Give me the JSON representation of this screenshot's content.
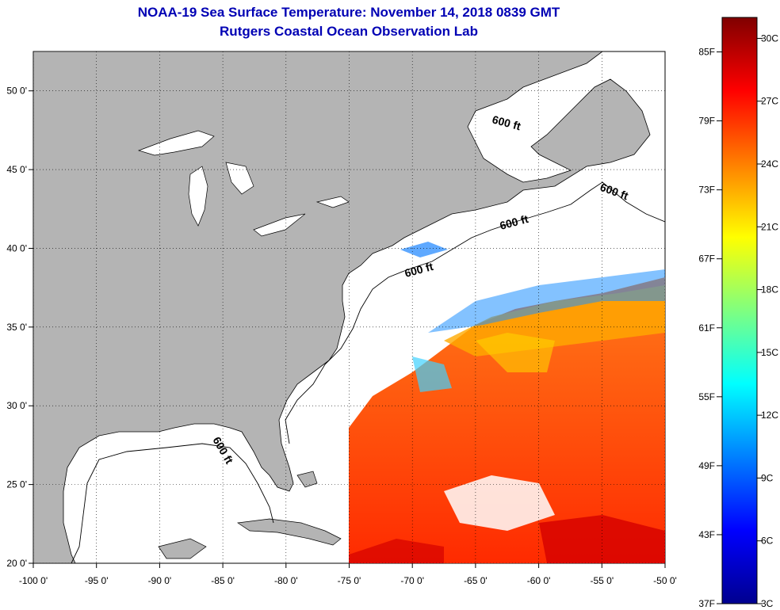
{
  "title_line1": "NOAA-19 Sea Surface Temperature:  November 14, 2018 0839 GMT",
  "title_line2": "Rutgers Coastal Ocean Observation Lab",
  "map": {
    "lon_range": [
      -100,
      -50
    ],
    "lat_range": [
      20,
      52.5
    ],
    "lon_ticks": [
      {
        "value": -100,
        "label": "-100 0'"
      },
      {
        "value": -95,
        "label": "-95 0'"
      },
      {
        "value": -90,
        "label": "-90 0'"
      },
      {
        "value": -85,
        "label": "-85 0'"
      },
      {
        "value": -80,
        "label": "-80 0'"
      },
      {
        "value": -75,
        "label": "-75 0'"
      },
      {
        "value": -70,
        "label": "-70 0'"
      },
      {
        "value": -65,
        "label": "-65 0'"
      },
      {
        "value": -60,
        "label": "-60 0'"
      },
      {
        "value": -55,
        "label": "-55 0'"
      },
      {
        "value": -50,
        "label": "-50 0'"
      }
    ],
    "lat_ticks": [
      {
        "value": 20,
        "label": "20 0'"
      },
      {
        "value": 25,
        "label": "25 0'"
      },
      {
        "value": 30,
        "label": "30 0'"
      },
      {
        "value": 35,
        "label": "35 0'"
      },
      {
        "value": 40,
        "label": "40 0'"
      },
      {
        "value": 45,
        "label": "45 0'"
      },
      {
        "value": 50,
        "label": "50 0'"
      }
    ],
    "grid": "dotted",
    "land_color": "#b4b4b4",
    "ocean_color": "#ffffff",
    "isobath_labels": [
      "600 ft",
      "600 ft",
      "600 ft",
      "600 ft",
      "600 ft"
    ]
  },
  "colorbar": {
    "range_f": [
      37,
      88
    ],
    "range_c": [
      3,
      31
    ],
    "f_labels": [
      "85F",
      "79F",
      "73F",
      "67F",
      "61F",
      "55F",
      "49F",
      "43F",
      "37F"
    ],
    "f_values": [
      85,
      79,
      73,
      67,
      61,
      55,
      49,
      43,
      37
    ],
    "c_labels": [
      "30C",
      "27C",
      "24C",
      "21C",
      "18C",
      "15C",
      "12C",
      "9C",
      "6C",
      "3C"
    ],
    "c_values": [
      30,
      27,
      24,
      21,
      18,
      15,
      12,
      9,
      6,
      3
    ],
    "colormap": "jet"
  }
}
